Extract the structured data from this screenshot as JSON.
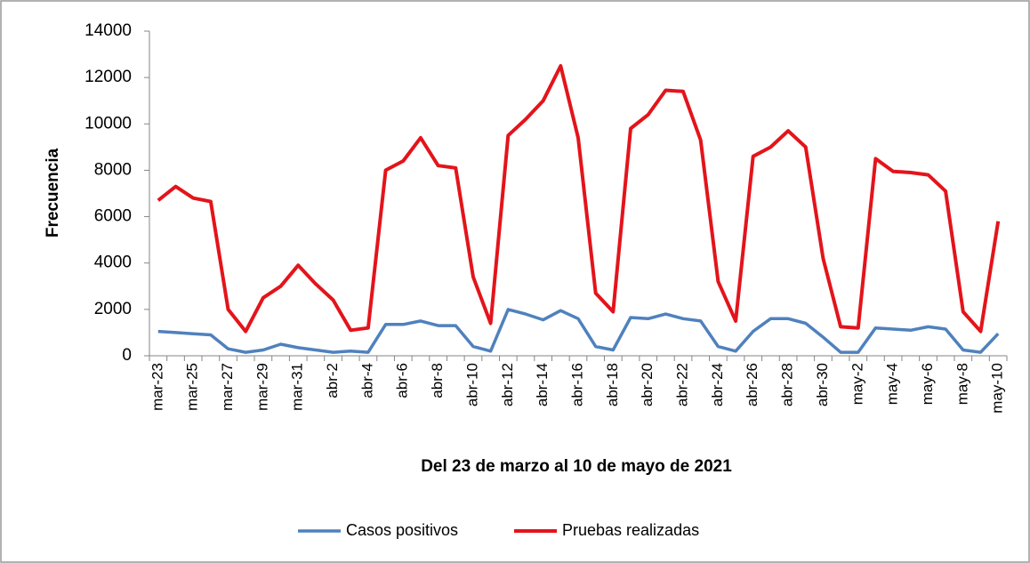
{
  "chart_data": {
    "type": "line",
    "x_label": "Del 23 de marzo al 10 de mayo de 2021",
    "y_label": "Frecuencia",
    "categories": [
      "mar-23",
      null,
      "mar-25",
      null,
      "mar-27",
      null,
      "mar-29",
      null,
      "mar-31",
      null,
      "abr-2",
      null,
      "abr-4",
      null,
      "abr-6",
      null,
      "abr-8",
      null,
      "abr-10",
      null,
      "abr-12",
      null,
      "abr-14",
      null,
      "abr-16",
      null,
      "abr-18",
      null,
      "abr-20",
      null,
      "abr-22",
      null,
      "abr-24",
      null,
      "abr-26",
      null,
      "abr-28",
      null,
      "abr-30",
      null,
      "may-2",
      null,
      "may-4",
      null,
      "may-6",
      null,
      "may-8",
      null,
      "may-10"
    ],
    "series": [
      {
        "name": "Casos positivos",
        "color": "#4f81bd",
        "values": [
          1050,
          1000,
          950,
          900,
          300,
          150,
          250,
          500,
          350,
          250,
          150,
          200,
          150,
          1350,
          1350,
          1500,
          1300,
          1300,
          400,
          200,
          2000,
          1800,
          1550,
          1950,
          1600,
          400,
          250,
          1650,
          1600,
          1800,
          1600,
          1500,
          400,
          200,
          1050,
          1600,
          1600,
          1400,
          800,
          150,
          150,
          1200,
          1150,
          1100,
          1250,
          1150,
          250,
          150,
          950
        ]
      },
      {
        "name": "Pruebas realizadas",
        "color": "#e3141b",
        "values": [
          6700,
          7300,
          6800,
          6650,
          2000,
          1050,
          2500,
          3000,
          3900,
          3100,
          2400,
          1100,
          1200,
          8000,
          8400,
          9400,
          8200,
          8100,
          3400,
          1400,
          9500,
          10200,
          11000,
          12500,
          9400,
          2700,
          1900,
          9800,
          10400,
          11450,
          11400,
          9300,
          3200,
          1500,
          8600,
          9000,
          9700,
          9000,
          4200,
          1250,
          1200,
          8500,
          7950,
          7900,
          7800,
          7100,
          1900,
          1050,
          5800
        ]
      }
    ],
    "ylim": [
      0,
      14000
    ],
    "yticks": [
      0,
      2000,
      4000,
      6000,
      8000,
      10000,
      12000,
      14000
    ],
    "legend": "bottom"
  }
}
